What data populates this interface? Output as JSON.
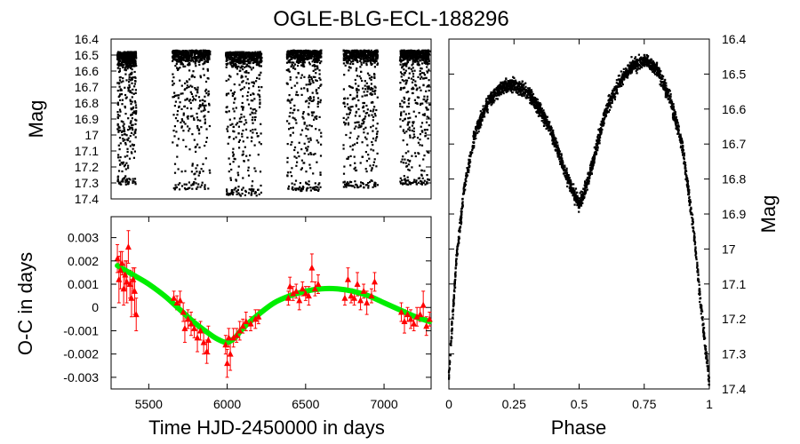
{
  "title": "OGLE-BLG-ECL-188296",
  "chart_data": [
    {
      "id": "lightcurve_time",
      "type": "scatter",
      "title": "",
      "xlabel": "",
      "ylabel": "Mag",
      "xlim": [
        5260,
        7300
      ],
      "ylim": [
        17.4,
        16.4
      ],
      "y_inverted": true,
      "yticks": [
        "16.4",
        "16.5",
        "16.6",
        "16.7",
        "16.8",
        "16.9",
        "17",
        "17.1",
        "17.2",
        "17.3",
        "17.4"
      ],
      "seasons": [
        {
          "start": 5300,
          "end": 5420,
          "mag_min": 16.48,
          "mag_max": 17.31
        },
        {
          "start": 5650,
          "end": 5890,
          "mag_min": 16.47,
          "mag_max": 17.34
        },
        {
          "start": 5990,
          "end": 6220,
          "mag_min": 16.48,
          "mag_max": 17.38
        },
        {
          "start": 6380,
          "end": 6600,
          "mag_min": 16.47,
          "mag_max": 17.35
        },
        {
          "start": 6740,
          "end": 6960,
          "mag_min": 16.47,
          "mag_max": 17.33
        },
        {
          "start": 7100,
          "end": 7290,
          "mag_min": 16.47,
          "mag_max": 17.31
        }
      ],
      "color": "#000000"
    },
    {
      "id": "oc_diagram",
      "type": "scatter",
      "title": "",
      "xlabel": "Time HJD-2450000 in days",
      "ylabel": "O-C in days",
      "xlim": [
        5260,
        7300
      ],
      "ylim": [
        -0.0035,
        0.0039
      ],
      "xticks": [
        5500,
        6000,
        6500,
        7000
      ],
      "yticks": [
        0.003,
        0.002,
        0.001,
        0,
        -0.001,
        -0.002,
        -0.003
      ],
      "ytick_labels": [
        "0.003",
        "0.002",
        "0.001",
        "0",
        "-0.001",
        "-0.002",
        "-0.003"
      ],
      "points_color": "#ff0000",
      "fit_color": "#00ee00",
      "points": [
        {
          "x": 5300,
          "y": 0.0021,
          "err": 0.0006
        },
        {
          "x": 5310,
          "y": 0.0012,
          "err": 0.001
        },
        {
          "x": 5320,
          "y": 0.0016,
          "err": 0.0008
        },
        {
          "x": 5330,
          "y": 0.0019,
          "err": 0.0005
        },
        {
          "x": 5340,
          "y": 0.0008,
          "err": 0.0007
        },
        {
          "x": 5350,
          "y": 0.0014,
          "err": 0.0006
        },
        {
          "x": 5360,
          "y": 0.0011,
          "err": 0.0009
        },
        {
          "x": 5370,
          "y": 0.0026,
          "err": 0.0007
        },
        {
          "x": 5380,
          "y": 0.001,
          "err": 0.0006
        },
        {
          "x": 5390,
          "y": 0.0004,
          "err": 0.0008
        },
        {
          "x": 5400,
          "y": 0.0012,
          "err": 0.0005
        },
        {
          "x": 5410,
          "y": 0.0007,
          "err": 0.001
        },
        {
          "x": 5420,
          "y": -0.0003,
          "err": 0.0007
        },
        {
          "x": 5660,
          "y": 0.0004,
          "err": 0.0003
        },
        {
          "x": 5680,
          "y": 0.0002,
          "err": 0.0003
        },
        {
          "x": 5700,
          "y": 0.0003,
          "err": 0.0004
        },
        {
          "x": 5720,
          "y": -0.0002,
          "err": 0.0004
        },
        {
          "x": 5730,
          "y": -0.0009,
          "err": 0.0006
        },
        {
          "x": 5750,
          "y": -0.0005,
          "err": 0.0004
        },
        {
          "x": 5770,
          "y": -0.0007,
          "err": 0.0005
        },
        {
          "x": 5790,
          "y": -0.0009,
          "err": 0.0004
        },
        {
          "x": 5810,
          "y": -0.0013,
          "err": 0.0006
        },
        {
          "x": 5830,
          "y": -0.001,
          "err": 0.0004
        },
        {
          "x": 5850,
          "y": -0.0015,
          "err": 0.0005
        },
        {
          "x": 5870,
          "y": -0.0019,
          "err": 0.0005
        },
        {
          "x": 5880,
          "y": -0.0014,
          "err": 0.0006
        },
        {
          "x": 5990,
          "y": -0.0016,
          "err": 0.0004
        },
        {
          "x": 6000,
          "y": -0.0024,
          "err": 0.0006
        },
        {
          "x": 6010,
          "y": -0.0013,
          "err": 0.0004
        },
        {
          "x": 6020,
          "y": -0.002,
          "err": 0.0007
        },
        {
          "x": 6040,
          "y": -0.0013,
          "err": 0.0004
        },
        {
          "x": 6060,
          "y": -0.0012,
          "err": 0.0003
        },
        {
          "x": 6080,
          "y": -0.001,
          "err": 0.0004
        },
        {
          "x": 6100,
          "y": -0.0008,
          "err": 0.0003
        },
        {
          "x": 6120,
          "y": -0.0006,
          "err": 0.0004
        },
        {
          "x": 6150,
          "y": -0.0007,
          "err": 0.0003
        },
        {
          "x": 6180,
          "y": -0.0005,
          "err": 0.0004
        },
        {
          "x": 6200,
          "y": -0.0004,
          "err": 0.0003
        },
        {
          "x": 6390,
          "y": 0.0004,
          "err": 0.0003
        },
        {
          "x": 6400,
          "y": 0.0009,
          "err": 0.0004
        },
        {
          "x": 6420,
          "y": 0.0006,
          "err": 0.0003
        },
        {
          "x": 6440,
          "y": 0.0007,
          "err": 0.0003
        },
        {
          "x": 6460,
          "y": 0.0003,
          "err": 0.0004
        },
        {
          "x": 6480,
          "y": 0.0008,
          "err": 0.0003
        },
        {
          "x": 6500,
          "y": 0.0006,
          "err": 0.0003
        },
        {
          "x": 6520,
          "y": 0.0005,
          "err": 0.0004
        },
        {
          "x": 6540,
          "y": 0.0017,
          "err": 0.0006
        },
        {
          "x": 6560,
          "y": 0.0008,
          "err": 0.0003
        },
        {
          "x": 6580,
          "y": 0.001,
          "err": 0.0004
        },
        {
          "x": 6750,
          "y": 0.0004,
          "err": 0.0003
        },
        {
          "x": 6770,
          "y": 0.0012,
          "err": 0.0005
        },
        {
          "x": 6790,
          "y": 0.0005,
          "err": 0.0003
        },
        {
          "x": 6810,
          "y": 0.0004,
          "err": 0.0003
        },
        {
          "x": 6830,
          "y": 0.001,
          "err": 0.0005
        },
        {
          "x": 6850,
          "y": 0.0003,
          "err": 0.0004
        },
        {
          "x": 6870,
          "y": 0.0007,
          "err": 0.0003
        },
        {
          "x": 6890,
          "y": 0.0002,
          "err": 0.0005
        },
        {
          "x": 6920,
          "y": 0.0005,
          "err": 0.0003
        },
        {
          "x": 6940,
          "y": 0.0011,
          "err": 0.0004
        },
        {
          "x": 7110,
          "y": -0.0002,
          "err": 0.0004
        },
        {
          "x": 7130,
          "y": -0.0006,
          "err": 0.0005
        },
        {
          "x": 7150,
          "y": -0.0003,
          "err": 0.0003
        },
        {
          "x": 7170,
          "y": -0.0005,
          "err": 0.0004
        },
        {
          "x": 7190,
          "y": -0.0007,
          "err": 0.0003
        },
        {
          "x": 7210,
          "y": -0.0004,
          "err": 0.0004
        },
        {
          "x": 7230,
          "y": -0.0003,
          "err": 0.0003
        },
        {
          "x": 7250,
          "y": 0.0001,
          "err": 0.0006
        },
        {
          "x": 7270,
          "y": -0.0008,
          "err": 0.0004
        },
        {
          "x": 7290,
          "y": -0.0005,
          "err": 0.0003
        }
      ],
      "fit_curve": {
        "x": [
          5300,
          5400,
          5500,
          5600,
          5700,
          5800,
          5900,
          5950,
          6000,
          6050,
          6100,
          6200,
          6300,
          6400,
          6500,
          6600,
          6700,
          6800,
          6900,
          7000,
          7100,
          7200,
          7290
        ],
        "y": [
          0.0018,
          0.0014,
          0.001,
          0.0005,
          -0.0001,
          -0.0007,
          -0.0012,
          -0.0014,
          -0.0015,
          -0.0013,
          -0.0009,
          -0.0003,
          0.0002,
          0.0005,
          0.0007,
          0.0008,
          0.0008,
          0.0007,
          0.0005,
          0.0002,
          -0.0001,
          -0.0004,
          -0.0006
        ]
      }
    },
    {
      "id": "phased_lightcurve",
      "type": "scatter",
      "title": "",
      "xlabel": "Phase",
      "ylabel": "Mag",
      "xlim": [
        0,
        1
      ],
      "ylim": [
        17.4,
        16.4
      ],
      "y_inverted": true,
      "xticks": [
        "0",
        "0.25",
        "0.5",
        "0.75",
        "1"
      ],
      "yticks": [
        "16.4",
        "16.5",
        "16.6",
        "16.7",
        "16.8",
        "16.9",
        "17",
        "17.1",
        "17.2",
        "17.3",
        "17.4"
      ],
      "phase_curve": {
        "phase": [
          0.0,
          0.03,
          0.06,
          0.1,
          0.15,
          0.2,
          0.25,
          0.3,
          0.35,
          0.4,
          0.45,
          0.48,
          0.5,
          0.52,
          0.55,
          0.6,
          0.65,
          0.7,
          0.75,
          0.8,
          0.85,
          0.9,
          0.94,
          0.97,
          1.0
        ],
        "mag": [
          17.36,
          17.02,
          16.82,
          16.67,
          16.58,
          16.54,
          16.53,
          16.55,
          16.6,
          16.68,
          16.79,
          16.84,
          16.87,
          16.84,
          16.76,
          16.61,
          16.53,
          16.48,
          16.46,
          16.49,
          16.57,
          16.72,
          16.95,
          17.18,
          17.38
        ]
      },
      "color": "#000000"
    }
  ]
}
